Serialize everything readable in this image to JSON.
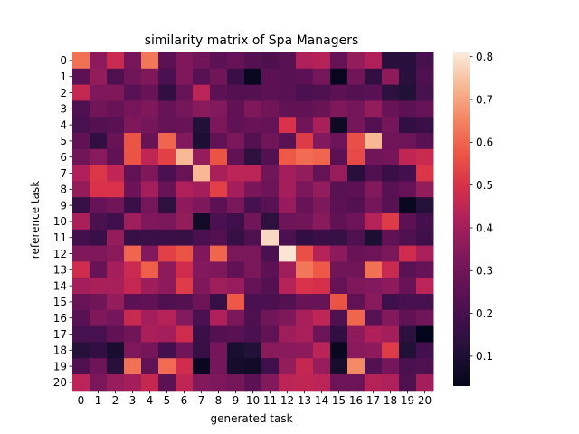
{
  "chart_data": {
    "type": "heatmap",
    "title": "similarity matrix of Spa Managers",
    "xlabel": "generated task",
    "ylabel": "reference task",
    "x_categories": [
      "0",
      "1",
      "2",
      "3",
      "4",
      "5",
      "6",
      "7",
      "8",
      "9",
      "10",
      "11",
      "12",
      "13",
      "14",
      "15",
      "16",
      "17",
      "18",
      "19",
      "20"
    ],
    "y_categories": [
      "0",
      "1",
      "2",
      "3",
      "4",
      "5",
      "6",
      "7",
      "8",
      "9",
      "10",
      "11",
      "12",
      "13",
      "14",
      "15",
      "16",
      "17",
      "18",
      "19",
      "20"
    ],
    "colorbar": {
      "vmin": 0.03,
      "vmax": 0.81,
      "ticks": [
        "0.1",
        "0.2",
        "0.3",
        "0.4",
        "0.5",
        "0.6",
        "0.7",
        "0.8"
      ],
      "tick_values": [
        0.1,
        0.2,
        0.3,
        0.4,
        0.5,
        0.6,
        0.7,
        0.8
      ],
      "colormap": "rocket"
    },
    "values": [
      [
        0.62,
        0.36,
        0.47,
        0.31,
        0.63,
        0.25,
        0.33,
        0.3,
        0.25,
        0.27,
        0.23,
        0.22,
        0.24,
        0.42,
        0.43,
        0.27,
        0.37,
        0.42,
        0.13,
        0.13,
        0.2
      ],
      [
        0.25,
        0.37,
        0.22,
        0.3,
        0.33,
        0.21,
        0.33,
        0.24,
        0.3,
        0.17,
        0.05,
        0.25,
        0.24,
        0.25,
        0.31,
        0.04,
        0.3,
        0.15,
        0.36,
        0.13,
        0.22
      ],
      [
        0.46,
        0.33,
        0.33,
        0.24,
        0.28,
        0.15,
        0.27,
        0.44,
        0.25,
        0.23,
        0.23,
        0.25,
        0.24,
        0.21,
        0.22,
        0.25,
        0.23,
        0.24,
        0.14,
        0.11,
        0.2
      ],
      [
        0.22,
        0.3,
        0.28,
        0.31,
        0.33,
        0.27,
        0.31,
        0.35,
        0.34,
        0.26,
        0.33,
        0.3,
        0.26,
        0.26,
        0.28,
        0.33,
        0.31,
        0.37,
        0.28,
        0.25,
        0.27
      ],
      [
        0.2,
        0.23,
        0.24,
        0.33,
        0.31,
        0.27,
        0.28,
        0.11,
        0.32,
        0.26,
        0.28,
        0.27,
        0.5,
        0.3,
        0.41,
        0.06,
        0.31,
        0.23,
        0.31,
        0.15,
        0.17
      ],
      [
        0.26,
        0.15,
        0.28,
        0.57,
        0.28,
        0.6,
        0.34,
        0.1,
        0.26,
        0.32,
        0.23,
        0.3,
        0.24,
        0.52,
        0.34,
        0.29,
        0.56,
        0.73,
        0.3,
        0.29,
        0.24
      ],
      [
        0.3,
        0.35,
        0.26,
        0.57,
        0.45,
        0.53,
        0.73,
        0.37,
        0.57,
        0.26,
        0.14,
        0.23,
        0.58,
        0.61,
        0.6,
        0.25,
        0.55,
        0.3,
        0.31,
        0.45,
        0.47
      ],
      [
        0.42,
        0.51,
        0.45,
        0.26,
        0.33,
        0.21,
        0.28,
        0.73,
        0.41,
        0.44,
        0.44,
        0.3,
        0.4,
        0.37,
        0.27,
        0.38,
        0.13,
        0.22,
        0.17,
        0.19,
        0.51
      ],
      [
        0.37,
        0.5,
        0.5,
        0.29,
        0.4,
        0.28,
        0.42,
        0.4,
        0.53,
        0.4,
        0.32,
        0.29,
        0.4,
        0.32,
        0.37,
        0.24,
        0.25,
        0.34,
        0.24,
        0.27,
        0.37
      ],
      [
        0.16,
        0.27,
        0.3,
        0.17,
        0.31,
        0.14,
        0.36,
        0.33,
        0.25,
        0.32,
        0.2,
        0.24,
        0.38,
        0.28,
        0.33,
        0.25,
        0.23,
        0.31,
        0.24,
        0.05,
        0.12
      ],
      [
        0.41,
        0.21,
        0.18,
        0.39,
        0.33,
        0.32,
        0.37,
        0.07,
        0.21,
        0.18,
        0.3,
        0.14,
        0.29,
        0.3,
        0.35,
        0.26,
        0.29,
        0.43,
        0.52,
        0.25,
        0.19
      ],
      [
        0.19,
        0.17,
        0.37,
        0.16,
        0.17,
        0.17,
        0.16,
        0.21,
        0.23,
        0.16,
        0.22,
        0.78,
        0.21,
        0.15,
        0.17,
        0.16,
        0.22,
        0.1,
        0.26,
        0.22,
        0.18
      ],
      [
        0.33,
        0.33,
        0.35,
        0.6,
        0.34,
        0.53,
        0.57,
        0.33,
        0.6,
        0.32,
        0.32,
        0.21,
        0.8,
        0.56,
        0.43,
        0.36,
        0.28,
        0.29,
        0.32,
        0.48,
        0.41
      ],
      [
        0.48,
        0.28,
        0.4,
        0.47,
        0.59,
        0.36,
        0.48,
        0.34,
        0.33,
        0.26,
        0.32,
        0.25,
        0.39,
        0.63,
        0.58,
        0.3,
        0.3,
        0.62,
        0.47,
        0.24,
        0.27
      ],
      [
        0.4,
        0.41,
        0.41,
        0.46,
        0.39,
        0.36,
        0.52,
        0.33,
        0.39,
        0.38,
        0.27,
        0.23,
        0.43,
        0.5,
        0.49,
        0.27,
        0.33,
        0.34,
        0.36,
        0.28,
        0.44
      ],
      [
        0.28,
        0.3,
        0.37,
        0.25,
        0.26,
        0.22,
        0.23,
        0.29,
        0.16,
        0.58,
        0.21,
        0.21,
        0.23,
        0.28,
        0.27,
        0.57,
        0.26,
        0.35,
        0.18,
        0.2,
        0.2
      ],
      [
        0.24,
        0.33,
        0.31,
        0.47,
        0.4,
        0.43,
        0.34,
        0.21,
        0.42,
        0.32,
        0.22,
        0.3,
        0.33,
        0.41,
        0.45,
        0.22,
        0.6,
        0.24,
        0.34,
        0.26,
        0.3
      ],
      [
        0.2,
        0.2,
        0.26,
        0.3,
        0.41,
        0.4,
        0.48,
        0.17,
        0.23,
        0.24,
        0.21,
        0.26,
        0.39,
        0.41,
        0.29,
        0.15,
        0.36,
        0.42,
        0.4,
        0.14,
        0.02
      ],
      [
        0.12,
        0.15,
        0.09,
        0.33,
        0.31,
        0.19,
        0.3,
        0.16,
        0.31,
        0.09,
        0.11,
        0.35,
        0.35,
        0.36,
        0.44,
        0.05,
        0.35,
        0.36,
        0.52,
        0.11,
        0.19
      ],
      [
        0.22,
        0.29,
        0.13,
        0.62,
        0.26,
        0.61,
        0.48,
        0.05,
        0.31,
        0.08,
        0.07,
        0.18,
        0.37,
        0.46,
        0.38,
        0.08,
        0.66,
        0.23,
        0.31,
        0.21,
        0.22
      ],
      [
        0.44,
        0.32,
        0.38,
        0.4,
        0.46,
        0.25,
        0.45,
        0.34,
        0.33,
        0.31,
        0.25,
        0.34,
        0.44,
        0.45,
        0.44,
        0.29,
        0.29,
        0.43,
        0.42,
        0.22,
        0.4
      ]
    ]
  }
}
